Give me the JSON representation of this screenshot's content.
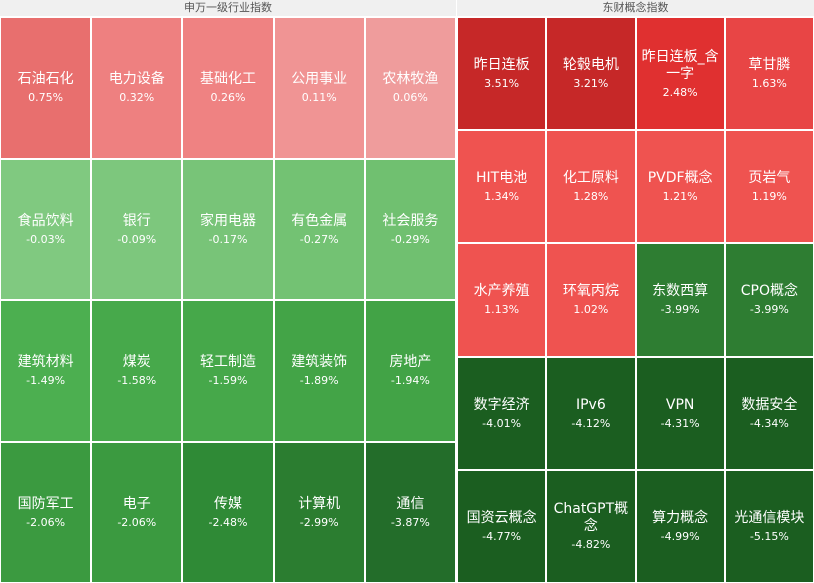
{
  "chart_data": [
    {
      "type": "heatmap",
      "title": "申万一级行业指数",
      "categories": [
        "石油石化",
        "电力设备",
        "基础化工",
        "公用事业",
        "农林牧渔",
        "食品饮料",
        "银行",
        "家用电器",
        "有色金属",
        "社会服务",
        "建筑材料",
        "煤炭",
        "轻工制造",
        "建筑装饰",
        "房地产",
        "国防军工",
        "电子",
        "传媒",
        "计算机",
        "通信"
      ],
      "values": [
        0.75,
        0.32,
        0.26,
        0.11,
        0.06,
        -0.03,
        -0.09,
        -0.17,
        -0.27,
        -0.29,
        -1.49,
        -1.58,
        -1.59,
        -1.89,
        -1.94,
        -2.06,
        -2.06,
        -2.48,
        -2.99,
        -3.87
      ],
      "value_labels": [
        "0.75%",
        "0.32%",
        "0.26%",
        "0.11%",
        "0.06%",
        "-0.03%",
        "-0.09%",
        "-0.17%",
        "-0.27%",
        "-0.29%",
        "-1.49%",
        "-1.58%",
        "-1.59%",
        "-1.89%",
        "-1.94%",
        "-2.06%",
        "-2.06%",
        "-2.48%",
        "-2.99%",
        "-3.87%"
      ],
      "colors": [
        "#e86f6e",
        "#ee8080",
        "#ef8282",
        "#f09494",
        "#ef9c9c",
        "#80c980",
        "#7dc77d",
        "#78c478",
        "#73c273",
        "#70c070",
        "#4caf50",
        "#47a94b",
        "#46a84a",
        "#43a447",
        "#42a346",
        "#3b9a40",
        "#3b9a40",
        "#2f8a36",
        "#2b7d30",
        "#236d2a"
      ]
    },
    {
      "type": "heatmap",
      "title": "东财概念指数",
      "categories": [
        "昨日连板",
        "轮毂电机",
        "昨日连板_含一字",
        "草甘膦",
        "HIT电池",
        "化工原料",
        "PVDF概念",
        "页岩气",
        "水产养殖",
        "环氧丙烷",
        "东数西算",
        "CPO概念",
        "数字经济",
        "IPv6",
        "VPN",
        "数据安全",
        "国资云概念",
        "ChatGPT概念",
        "算力概念",
        "光通信模块"
      ],
      "values": [
        3.51,
        3.21,
        2.48,
        1.63,
        1.34,
        1.28,
        1.21,
        1.19,
        1.13,
        1.02,
        -3.99,
        -3.99,
        -4.01,
        -4.12,
        -4.31,
        -4.34,
        -4.77,
        -4.82,
        -4.99,
        -5.15
      ],
      "value_labels": [
        "3.51%",
        "3.21%",
        "2.48%",
        "1.63%",
        "1.34%",
        "1.28%",
        "1.21%",
        "1.19%",
        "1.13%",
        "1.02%",
        "-3.99%",
        "-3.99%",
        "-4.01%",
        "-4.12%",
        "-4.31%",
        "-4.34%",
        "-4.77%",
        "-4.82%",
        "-4.99%",
        "-5.15%"
      ],
      "colors": [
        "#c62828",
        "#c62828",
        "#e03030",
        "#e84545",
        "#ef5350",
        "#ef5350",
        "#ef5350",
        "#ef5350",
        "#ef5350",
        "#ef5350",
        "#2e7d32",
        "#2e7d32",
        "#1b5e20",
        "#1b5e20",
        "#1b5e20",
        "#1b5e20",
        "#1b5e20",
        "#1b5e20",
        "#1b5e20",
        "#1b5e20"
      ]
    }
  ]
}
